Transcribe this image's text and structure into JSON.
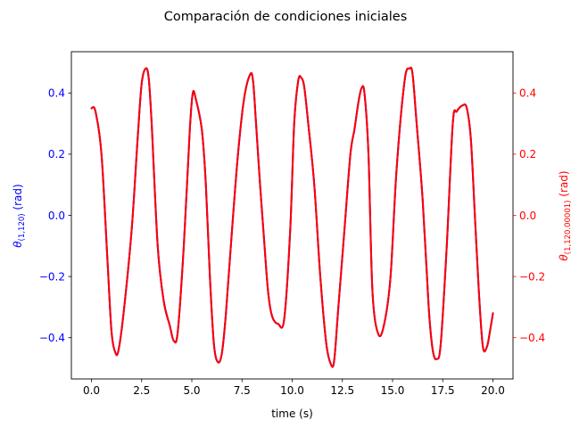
{
  "chart_data": {
    "type": "line",
    "title": "Comparación de condiciones iniciales",
    "xlabel": "time (s)",
    "ylabel_left": {
      "symbol": "θ",
      "subscript": "(1,120)",
      "unit": " (rad)",
      "color": "#0000ff"
    },
    "ylabel_right": {
      "symbol": "θ",
      "subscript": "(1,120.00001)",
      "unit": " (rad)",
      "color": "#ff0000"
    },
    "xlim": [
      -1.0,
      21.0
    ],
    "ylim_left": [
      -0.535,
      0.535
    ],
    "ylim_right": [
      -0.535,
      0.535
    ],
    "x_ticks": [
      0.0,
      2.5,
      5.0,
      7.5,
      10.0,
      12.5,
      15.0,
      17.5,
      20.0
    ],
    "x_tick_labels": [
      "0.0",
      "2.5",
      "5.0",
      "7.5",
      "10.0",
      "12.5",
      "15.0",
      "17.5",
      "20.0"
    ],
    "y_ticks": [
      -0.4,
      -0.2,
      0.0,
      0.2,
      0.4
    ],
    "y_tick_labels": [
      "−0.4",
      "−0.2",
      "0.0",
      "0.2",
      "0.4"
    ],
    "grid": false,
    "series": [
      {
        "axis": "left",
        "color": "#0000ff",
        "x": [
          0.0,
          0.2,
          0.5,
          0.8,
          1.0,
          1.2,
          1.35,
          1.6,
          2.0,
          2.3,
          2.5,
          2.7,
          2.85,
          3.0,
          3.3,
          3.6,
          3.9,
          4.1,
          4.3,
          4.6,
          4.9,
          5.05,
          5.2,
          5.5,
          5.7,
          5.9,
          6.1,
          6.3,
          6.5,
          6.7,
          7.0,
          7.3,
          7.6,
          7.9,
          8.05,
          8.2,
          8.4,
          8.6,
          8.8,
          9.0,
          9.3,
          9.6,
          9.9,
          10.1,
          10.3,
          10.45,
          10.6,
          10.8,
          11.1,
          11.4,
          11.7,
          11.95,
          12.1,
          12.3,
          12.6,
          12.9,
          13.1,
          13.3,
          13.45,
          13.6,
          13.8,
          14.0,
          14.3,
          14.6,
          14.9,
          15.2,
          15.6,
          15.85,
          16.0,
          16.2,
          16.5,
          16.8,
          17.0,
          17.2,
          17.4,
          17.7,
          18.0,
          18.2,
          18.5,
          18.7,
          18.9,
          19.1,
          19.3,
          19.5,
          19.7,
          19.85,
          20.0
        ],
        "y": [
          0.35,
          0.34,
          0.2,
          -0.15,
          -0.38,
          -0.45,
          -0.44,
          -0.32,
          -0.05,
          0.25,
          0.43,
          0.48,
          0.45,
          0.3,
          -0.1,
          -0.28,
          -0.36,
          -0.41,
          -0.38,
          -0.1,
          0.28,
          0.4,
          0.38,
          0.28,
          0.1,
          -0.2,
          -0.42,
          -0.48,
          -0.45,
          -0.32,
          -0.05,
          0.2,
          0.38,
          0.46,
          0.44,
          0.3,
          0.1,
          -0.08,
          -0.25,
          -0.33,
          -0.355,
          -0.34,
          -0.05,
          0.3,
          0.44,
          0.45,
          0.42,
          0.3,
          0.1,
          -0.2,
          -0.42,
          -0.49,
          -0.47,
          -0.3,
          -0.05,
          0.2,
          0.28,
          0.37,
          0.415,
          0.4,
          0.2,
          -0.25,
          -0.39,
          -0.35,
          -0.2,
          0.15,
          0.44,
          0.48,
          0.46,
          0.3,
          0.05,
          -0.3,
          -0.44,
          -0.47,
          -0.42,
          -0.1,
          0.3,
          0.34,
          0.36,
          0.35,
          0.25,
          0.0,
          -0.25,
          -0.43,
          -0.43,
          -0.38,
          -0.32
        ]
      },
      {
        "axis": "right",
        "color": "#ff0000",
        "x": [
          0.0,
          0.2,
          0.5,
          0.8,
          1.0,
          1.2,
          1.35,
          1.6,
          2.0,
          2.3,
          2.5,
          2.7,
          2.85,
          3.0,
          3.3,
          3.6,
          3.9,
          4.1,
          4.3,
          4.6,
          4.9,
          5.05,
          5.2,
          5.5,
          5.7,
          5.9,
          6.1,
          6.3,
          6.5,
          6.7,
          7.0,
          7.3,
          7.6,
          7.9,
          8.05,
          8.2,
          8.4,
          8.6,
          8.8,
          9.0,
          9.3,
          9.6,
          9.9,
          10.1,
          10.3,
          10.45,
          10.6,
          10.8,
          11.1,
          11.4,
          11.7,
          11.95,
          12.1,
          12.3,
          12.6,
          12.9,
          13.1,
          13.3,
          13.45,
          13.6,
          13.8,
          14.0,
          14.3,
          14.6,
          14.9,
          15.2,
          15.6,
          15.85,
          16.0,
          16.2,
          16.5,
          16.8,
          17.0,
          17.2,
          17.4,
          17.7,
          18.0,
          18.2,
          18.5,
          18.7,
          18.9,
          19.1,
          19.3,
          19.5,
          19.7,
          19.85,
          20.0
        ],
        "y": [
          0.35,
          0.34,
          0.2,
          -0.15,
          -0.38,
          -0.45,
          -0.44,
          -0.32,
          -0.05,
          0.25,
          0.43,
          0.48,
          0.45,
          0.3,
          -0.1,
          -0.28,
          -0.36,
          -0.41,
          -0.38,
          -0.1,
          0.28,
          0.4,
          0.38,
          0.28,
          0.1,
          -0.2,
          -0.42,
          -0.48,
          -0.45,
          -0.32,
          -0.05,
          0.2,
          0.38,
          0.46,
          0.44,
          0.3,
          0.1,
          -0.08,
          -0.25,
          -0.33,
          -0.355,
          -0.34,
          -0.05,
          0.3,
          0.44,
          0.45,
          0.42,
          0.3,
          0.1,
          -0.2,
          -0.42,
          -0.49,
          -0.47,
          -0.3,
          -0.05,
          0.2,
          0.28,
          0.37,
          0.415,
          0.4,
          0.2,
          -0.25,
          -0.39,
          -0.35,
          -0.2,
          0.15,
          0.44,
          0.48,
          0.46,
          0.3,
          0.05,
          -0.3,
          -0.44,
          -0.47,
          -0.42,
          -0.1,
          0.3,
          0.34,
          0.36,
          0.35,
          0.25,
          0.0,
          -0.25,
          -0.43,
          -0.43,
          -0.38,
          -0.32
        ]
      }
    ]
  }
}
